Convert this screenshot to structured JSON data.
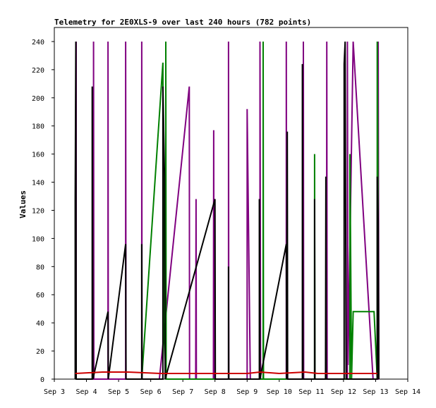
{
  "chart_data": {
    "type": "line",
    "title": "Telemetry for 2E0XLS-9 over last 240 hours (782 points)",
    "xlabel": "",
    "ylabel": "Values",
    "grid": false,
    "legend": "none",
    "xlim": [
      0,
      11
    ],
    "ylim": [
      0,
      250
    ],
    "x_ticks": [
      {
        "x": 0,
        "label": "Sep 3"
      },
      {
        "x": 1,
        "label": "Sep 4"
      },
      {
        "x": 2,
        "label": "Sep 5"
      },
      {
        "x": 3,
        "label": "Sep 6"
      },
      {
        "x": 4,
        "label": "Sep 7"
      },
      {
        "x": 5,
        "label": "Sep 8"
      },
      {
        "x": 6,
        "label": "Sep 9"
      },
      {
        "x": 7,
        "label": "Sep 10"
      },
      {
        "x": 8,
        "label": "Sep 11"
      },
      {
        "x": 9,
        "label": "Sep 12"
      },
      {
        "x": 10,
        "label": "Sep 13"
      },
      {
        "x": 11,
        "label": "Sep 14"
      }
    ],
    "y_ticks": [
      0,
      20,
      40,
      60,
      80,
      100,
      120,
      140,
      160,
      180,
      200,
      220,
      240
    ],
    "series": [
      {
        "color": "#800080",
        "points": [
          [
            0.67,
            0
          ],
          [
            0.67,
            200
          ],
          [
            0.68,
            240
          ],
          [
            0.68,
            0
          ],
          [
            1.22,
            0
          ],
          [
            1.22,
            240
          ],
          [
            1.23,
            0
          ],
          [
            1.67,
            0
          ],
          [
            1.67,
            240
          ],
          [
            1.68,
            0
          ],
          [
            2.22,
            0
          ],
          [
            2.22,
            240
          ],
          [
            2.23,
            0
          ],
          [
            2.72,
            0
          ],
          [
            2.72,
            240
          ],
          [
            2.73,
            0
          ],
          [
            3.27,
            0
          ],
          [
            4.2,
            208
          ],
          [
            4.21,
            0
          ],
          [
            4.4,
            0
          ],
          [
            4.41,
            128
          ],
          [
            4.42,
            0
          ],
          [
            4.95,
            0
          ],
          [
            4.96,
            177
          ],
          [
            4.97,
            0
          ],
          [
            5.42,
            0
          ],
          [
            5.42,
            240
          ],
          [
            5.43,
            0
          ],
          [
            6.0,
            0
          ],
          [
            6.0,
            192
          ],
          [
            6.1,
            0
          ],
          [
            6.4,
            0
          ],
          [
            6.4,
            240
          ],
          [
            6.42,
            0
          ],
          [
            7.22,
            0
          ],
          [
            7.22,
            240
          ],
          [
            7.23,
            0
          ],
          [
            7.75,
            0
          ],
          [
            7.75,
            240
          ],
          [
            7.76,
            0
          ],
          [
            8.47,
            0
          ],
          [
            8.48,
            240
          ],
          [
            8.49,
            0
          ],
          [
            9.12,
            0
          ],
          [
            9.12,
            240
          ],
          [
            9.14,
            10
          ],
          [
            9.3,
            240
          ],
          [
            9.92,
            0
          ],
          [
            10.08,
            0
          ],
          [
            10.08,
            240
          ],
          [
            10.1,
            0
          ]
        ]
      },
      {
        "color": "#008000",
        "points": [
          [
            2.72,
            0
          ],
          [
            3.38,
            225
          ],
          [
            3.4,
            40
          ],
          [
            3.47,
            0
          ],
          [
            3.47,
            240
          ],
          [
            3.48,
            0
          ],
          [
            6.5,
            0
          ],
          [
            6.5,
            240
          ],
          [
            6.51,
            0
          ],
          [
            8.1,
            0
          ],
          [
            8.1,
            160
          ],
          [
            8.11,
            0
          ],
          [
            9.2,
            0
          ],
          [
            9.2,
            160
          ],
          [
            9.25,
            0
          ],
          [
            9.3,
            48
          ],
          [
            9.95,
            48
          ],
          [
            10.05,
            0
          ],
          [
            10.05,
            240
          ],
          [
            10.08,
            104
          ]
        ]
      },
      {
        "color": "#000000",
        "points": [
          [
            0.65,
            0
          ],
          [
            0.65,
            128
          ],
          [
            0.67,
            240
          ],
          [
            0.68,
            0
          ],
          [
            1.18,
            0
          ],
          [
            1.18,
            208
          ],
          [
            1.2,
            0
          ],
          [
            1.67,
            48
          ],
          [
            1.68,
            0
          ],
          [
            2.22,
            96
          ],
          [
            2.23,
            0
          ],
          [
            2.72,
            0
          ],
          [
            2.72,
            96
          ],
          [
            2.73,
            0
          ],
          [
            3.38,
            0
          ],
          [
            3.38,
            208
          ],
          [
            3.43,
            144
          ],
          [
            3.45,
            0
          ],
          [
            5.0,
            128
          ],
          [
            5.01,
            0
          ],
          [
            5.42,
            0
          ],
          [
            5.42,
            80
          ],
          [
            5.43,
            0
          ],
          [
            6.38,
            0
          ],
          [
            6.38,
            128
          ],
          [
            6.4,
            0
          ],
          [
            7.22,
            96
          ],
          [
            7.23,
            0
          ],
          [
            7.25,
            176
          ],
          [
            7.26,
            0
          ],
          [
            7.72,
            0
          ],
          [
            7.72,
            224
          ],
          [
            7.74,
            0
          ],
          [
            8.1,
            0
          ],
          [
            8.1,
            128
          ],
          [
            8.11,
            0
          ],
          [
            8.44,
            0
          ],
          [
            8.45,
            144
          ],
          [
            8.46,
            0
          ],
          [
            9.02,
            0
          ],
          [
            9.02,
            224
          ],
          [
            9.05,
            240
          ],
          [
            9.08,
            0
          ],
          [
            10.05,
            0
          ],
          [
            10.05,
            144
          ],
          [
            10.08,
            112
          ],
          [
            10.1,
            0
          ]
        ]
      },
      {
        "color": "#cc0000",
        "points": [
          [
            0.65,
            4
          ],
          [
            1.5,
            5
          ],
          [
            2.3,
            5
          ],
          [
            3.3,
            4
          ],
          [
            4.2,
            4
          ],
          [
            5.0,
            4
          ],
          [
            6.0,
            4
          ],
          [
            6.4,
            5
          ],
          [
            7.0,
            4
          ],
          [
            7.8,
            5
          ],
          [
            8.2,
            4
          ],
          [
            9.0,
            4
          ],
          [
            10.05,
            4
          ]
        ]
      }
    ]
  }
}
